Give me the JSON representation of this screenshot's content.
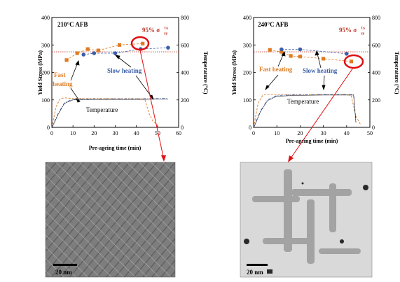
{
  "colors": {
    "fast": "#e07b22",
    "slow": "#3a5ea8",
    "pct_line": "#c0392b",
    "highlight": "#e01010",
    "temp_line": "#000000",
    "tem_left_bg": "#7d7d7d",
    "tem_right_bg": "#d6d6d6"
  },
  "chart_data": [
    {
      "type": "line",
      "title": "210°C  AFB",
      "xlabel": "Pre-ageing time (min)",
      "ylabel": "Yield Stress (MPa)",
      "y2label": "Temperature (°C)",
      "xlim": [
        0,
        60
      ],
      "xticks": [
        "0",
        "10",
        "20",
        "30",
        "40",
        "50",
        "60"
      ],
      "ylim": [
        0,
        400
      ],
      "yticks": [
        "0",
        "100",
        "200",
        "300",
        "400"
      ],
      "y2lim": [
        0,
        800
      ],
      "y2ticks": [
        "0",
        "200",
        "400",
        "600",
        "800"
      ],
      "reference_line": {
        "label": "95% σ",
        "superscript": "T6",
        "subscript": "yp",
        "value": 275
      },
      "annotations": {
        "fast": "Fast heating",
        "fast_2": "heating",
        "fast_1": "Fast",
        "slow": "Slow heating",
        "temp": "Temperature"
      },
      "series": [
        {
          "name": "Fast heating",
          "type": "line+marker",
          "marker": "square",
          "x": [
            7,
            12,
            17,
            22,
            32,
            43
          ],
          "y": [
            245,
            270,
            285,
            280,
            300,
            305
          ]
        },
        {
          "name": "Slow heating",
          "type": "line+marker",
          "marker": "circle",
          "x": [
            15,
            20,
            30,
            42,
            55
          ],
          "y": [
            265,
            270,
            270,
            285,
            290
          ]
        },
        {
          "name": "Temperature (fast)",
          "axis": "y2",
          "dash": "dashed",
          "x": [
            0,
            2,
            4,
            6,
            10,
            20,
            30,
            40,
            44,
            46,
            48,
            50
          ],
          "y": [
            0,
            150,
            210,
            215,
            210,
            210,
            210,
            210,
            205,
            100,
            40,
            20
          ]
        },
        {
          "name": "Temperature (slow)",
          "axis": "y2",
          "dash": "dashdot",
          "x": [
            0,
            3,
            6,
            10,
            20,
            30,
            40,
            50,
            55
          ],
          "y": [
            0,
            100,
            180,
            205,
            208,
            208,
            208,
            210,
            210
          ]
        }
      ]
    },
    {
      "type": "line",
      "title": "240°C  AFB",
      "xlabel": "Pre-ageing time (min)",
      "ylabel": "Yield Stress (MPa)",
      "y2label": "Temperature (°C)",
      "xlim": [
        0,
        50
      ],
      "xticks": [
        "0",
        "10",
        "20",
        "30",
        "40",
        "50"
      ],
      "ylim": [
        0,
        400
      ],
      "yticks": [
        "0",
        "100",
        "200",
        "300",
        "400"
      ],
      "y2lim": [
        0,
        800
      ],
      "y2ticks": [
        "0",
        "200",
        "400",
        "600",
        "800"
      ],
      "reference_line": {
        "label": "95% σ",
        "superscript": "T6",
        "subscript": "yp",
        "value": 275
      },
      "annotations": {
        "fast": "Fast heating",
        "slow": "Slow heating",
        "temp": "Temperature"
      },
      "series": [
        {
          "name": "Fast heating",
          "type": "line+marker",
          "marker": "square",
          "x": [
            7,
            12,
            16,
            20,
            30,
            42
          ],
          "y": [
            282,
            275,
            260,
            258,
            250,
            240
          ]
        },
        {
          "name": "Slow heating",
          "type": "line+marker",
          "marker": "circle",
          "x": [
            12,
            20,
            40
          ],
          "y": [
            284,
            284,
            268
          ]
        },
        {
          "name": "Temperature (fast)",
          "axis": "y2",
          "dash": "dashed",
          "x": [
            0,
            2,
            4,
            6,
            10,
            20,
            30,
            40,
            42,
            44,
            46
          ],
          "y": [
            0,
            180,
            235,
            240,
            240,
            240,
            240,
            240,
            230,
            80,
            20
          ]
        },
        {
          "name": "Temperature (slow)",
          "axis": "y2",
          "dash": "dashdot",
          "x": [
            0,
            3,
            6,
            10,
            20,
            30,
            40,
            43,
            44
          ],
          "y": [
            0,
            120,
            200,
            232,
            238,
            240,
            240,
            240,
            40
          ]
        }
      ]
    }
  ],
  "micrographs": [
    {
      "scale_label": "20 nm"
    },
    {
      "scale_label": "20 nm"
    }
  ]
}
